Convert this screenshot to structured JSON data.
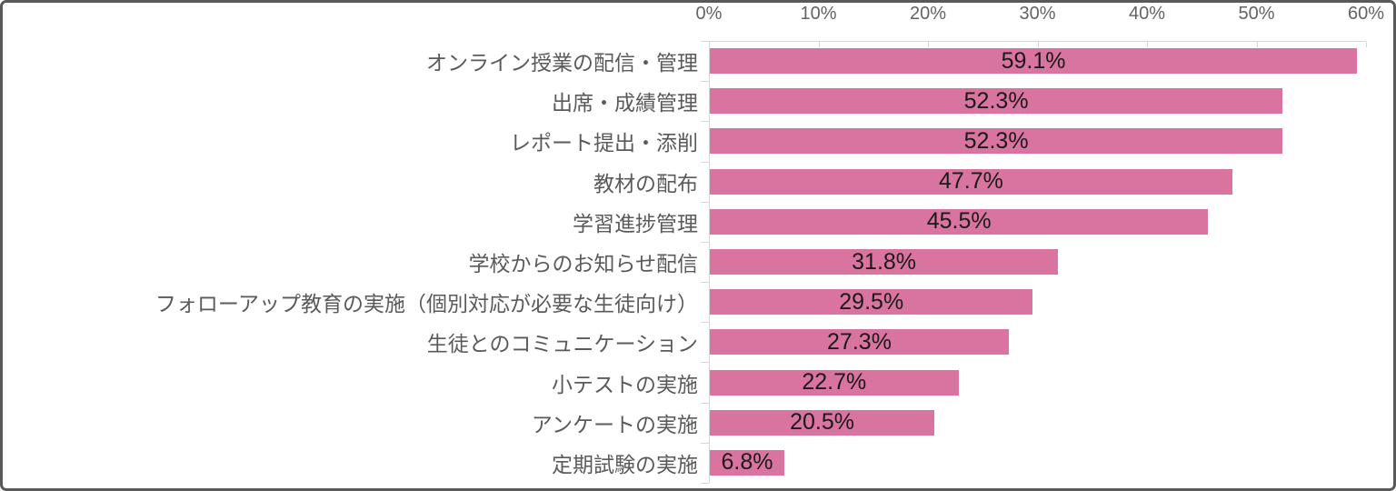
{
  "chart_data": {
    "type": "bar",
    "orientation": "horizontal",
    "title": "",
    "xlabel": "",
    "ylabel": "",
    "xlim": [
      0,
      60
    ],
    "x_tick_labels": [
      "0%",
      "10%",
      "20%",
      "30%",
      "40%",
      "50%",
      "60%"
    ],
    "x_tick_values": [
      0,
      10,
      20,
      30,
      40,
      50,
      60
    ],
    "axis_position": "top",
    "grid": false,
    "legend": false,
    "categories": [
      "オンライン授業の配信・管理",
      "出席・成績管理",
      "レポート提出・添削",
      "教材の配布",
      "学習進捗管理",
      "学校からのお知らせ配信",
      "フォローアップ教育の実施（個別対応が必要な生徒向け）",
      "生徒とのコミュニケーション",
      "小テストの実施",
      "アンケートの実施",
      "定期試験の実施"
    ],
    "values": [
      59.1,
      52.3,
      52.3,
      47.7,
      45.5,
      31.8,
      29.5,
      27.3,
      22.7,
      20.5,
      6.8
    ],
    "value_labels": [
      "59.1%",
      "52.3%",
      "52.3%",
      "47.7%",
      "45.5%",
      "31.8%",
      "29.5%",
      "27.3%",
      "22.7%",
      "20.5%",
      "6.8%"
    ],
    "colors": {
      "bar": "#d9739f",
      "value_text": "#1a1a1a",
      "category_text": "#5a5a5a",
      "axis_tick_text": "#636363",
      "axis_line": "#d6d6d6",
      "frame_border": "#58595b",
      "background": "#ffffff"
    }
  }
}
